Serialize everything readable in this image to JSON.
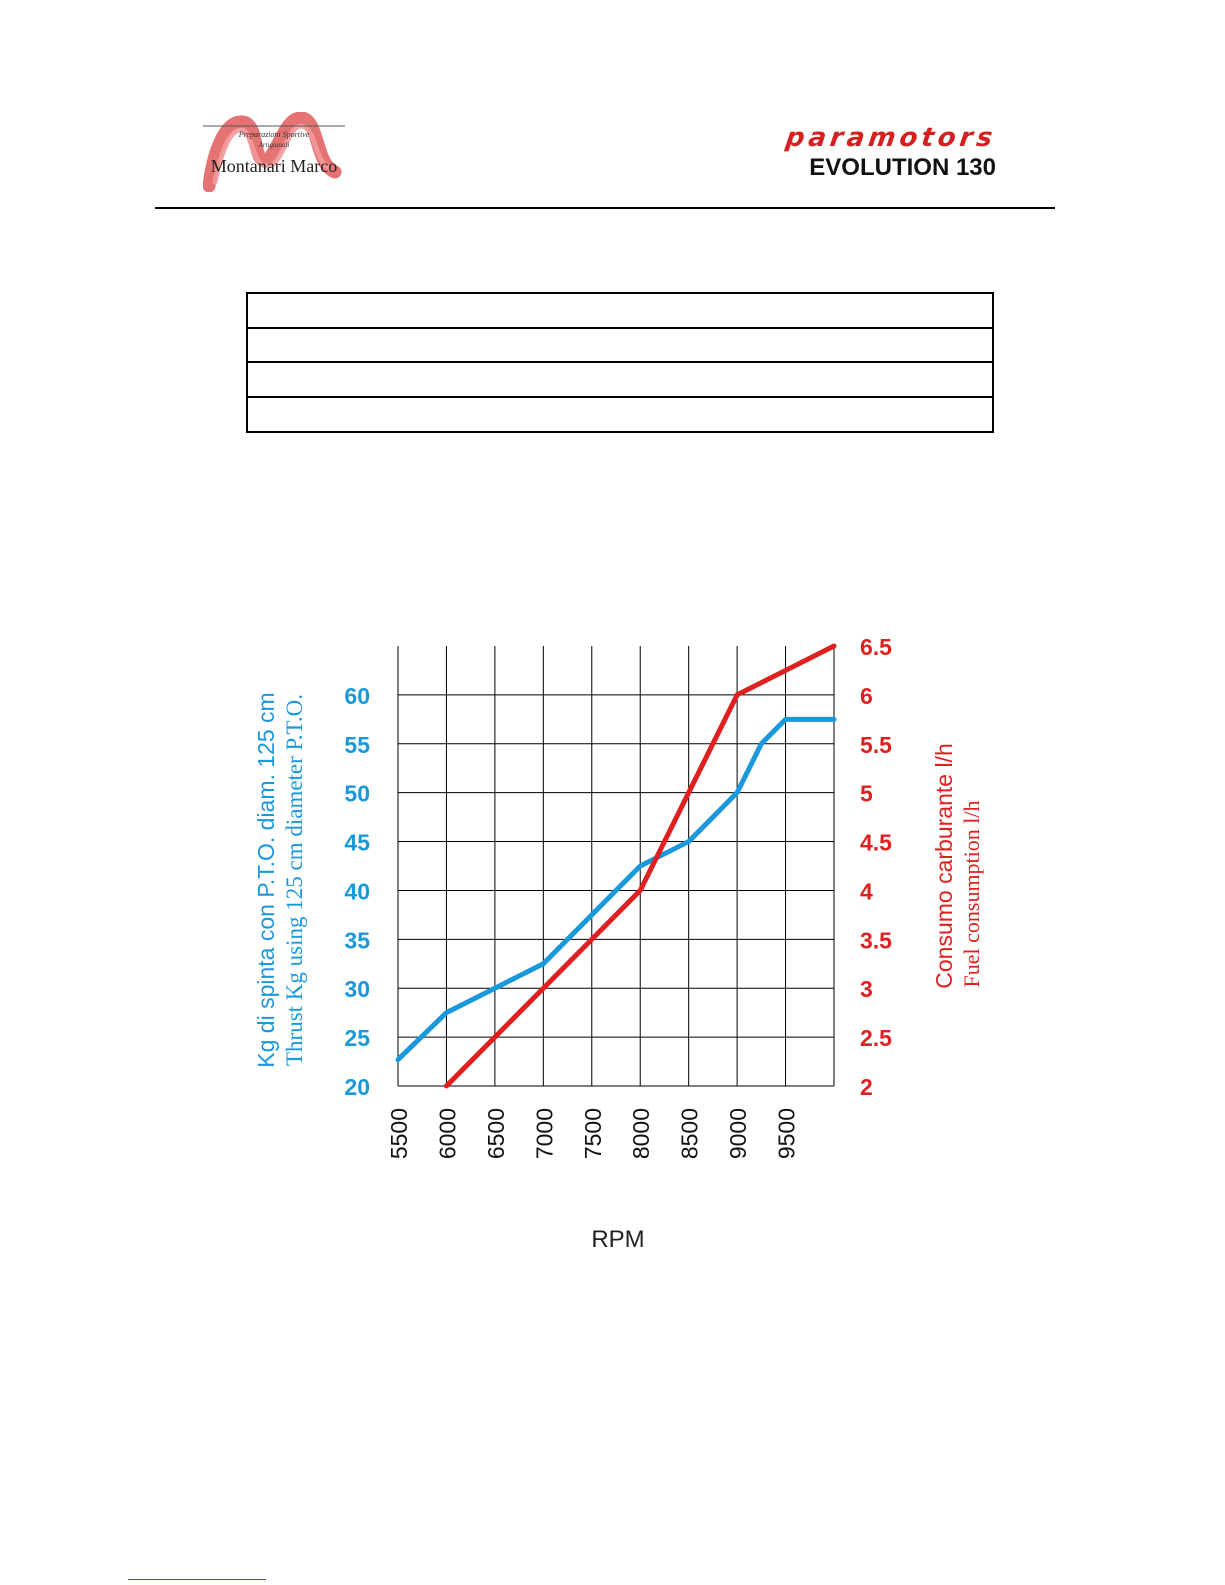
{
  "header": {
    "logo": {
      "subtitle": "Preparazioni Sportive",
      "subtitle2": "Artigianali",
      "name": "Montanari Marco"
    },
    "brand": {
      "name": "paramotors",
      "model": "EVOLUTION 130"
    }
  },
  "colors": {
    "thrust": "#1a98dc",
    "fuel": "#e02020",
    "grid": "#000000"
  },
  "chart_data": {
    "type": "line",
    "xlabel": "RPM",
    "x_ticks": [
      "5500",
      "6000",
      "6500",
      "7000",
      "7500",
      "8000",
      "8500",
      "9000",
      "9500"
    ],
    "y_left": {
      "label_line1": "Kg di spinta con P.T.O. diam. 125 cm",
      "label_line2": "Thrust Kg using 125 cm diameter P.T.O.",
      "ticks": [
        "20",
        "25",
        "30",
        "35",
        "40",
        "45",
        "50",
        "55",
        "60"
      ],
      "range": [
        20,
        65
      ]
    },
    "y_right": {
      "label_line1": "Consumo carburante l/h",
      "label_line2": "Fuel consumption l/h",
      "ticks": [
        "2",
        "2.5",
        "3",
        "3.5",
        "4",
        "4.5",
        "5",
        "5.5",
        "6",
        "6.5"
      ],
      "range": [
        2,
        6.5
      ]
    },
    "x_range": [
      5500,
      10000
    ],
    "grid": true,
    "series": [
      {
        "axis": "left",
        "color": "thrust",
        "points": [
          [
            5500,
            22.7
          ],
          [
            6000,
            27.5
          ],
          [
            6500,
            30
          ],
          [
            7000,
            32.5
          ],
          [
            7500,
            37.5
          ],
          [
            8000,
            42.5
          ],
          [
            8500,
            45
          ],
          [
            9000,
            50
          ],
          [
            9250,
            55
          ],
          [
            9500,
            57.5
          ],
          [
            10000,
            57.5
          ]
        ]
      },
      {
        "axis": "right",
        "color": "fuel",
        "points": [
          [
            6000,
            2
          ],
          [
            6500,
            2.5
          ],
          [
            7000,
            3
          ],
          [
            7500,
            3.5
          ],
          [
            8000,
            4
          ],
          [
            8250,
            4.5
          ],
          [
            8500,
            5
          ],
          [
            8750,
            5.5
          ],
          [
            9000,
            6
          ],
          [
            9500,
            6.25
          ],
          [
            10000,
            6.5
          ]
        ]
      }
    ]
  }
}
